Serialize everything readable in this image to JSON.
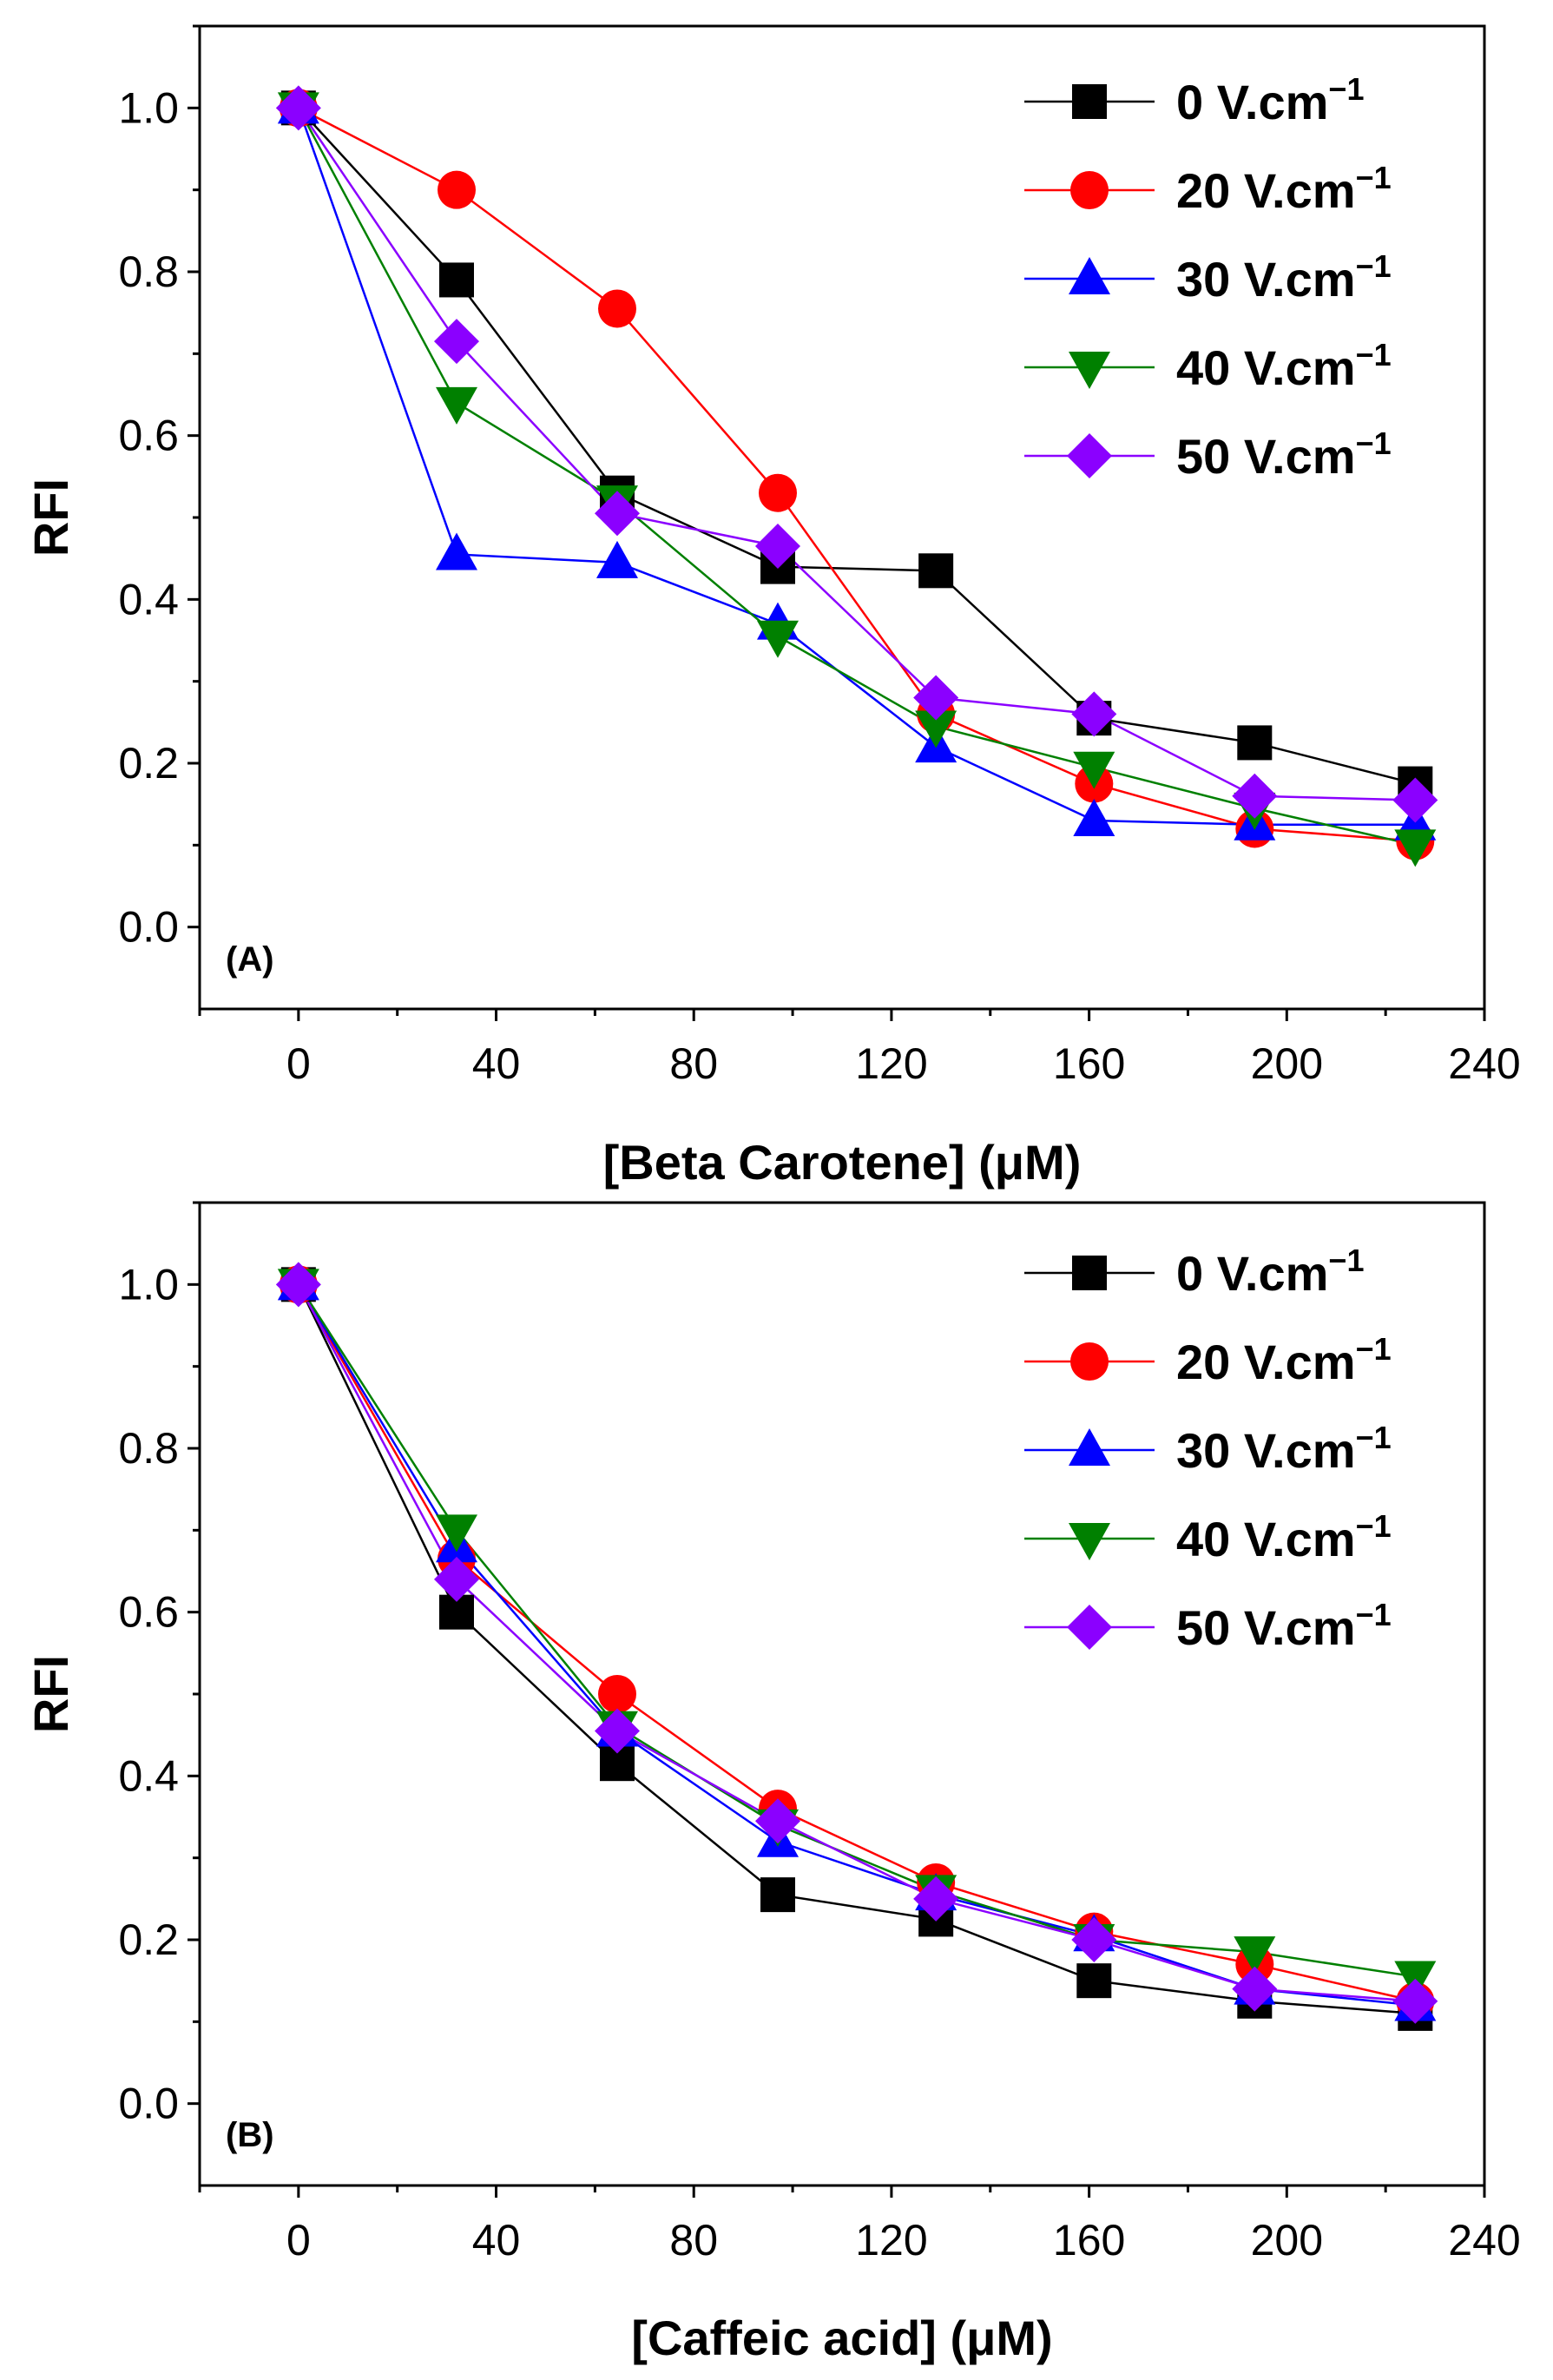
{
  "chart_data": [
    {
      "type": "line",
      "panel_label": "(A)",
      "xlabel": "[Beta Carotene] (μM)",
      "ylabel": "RFI",
      "xlim": [
        -20,
        240
      ],
      "ylim": [
        -0.1,
        1.1
      ],
      "xticks": [
        "0",
        "40",
        "80",
        "120",
        "160",
        "200",
        "240"
      ],
      "yticks": [
        "0.0",
        "0.2",
        "0.4",
        "0.6",
        "0.8",
        "1.0"
      ],
      "legend_position": "top-right",
      "x": [
        0,
        32,
        64.5,
        97,
        129,
        161,
        193.5,
        226
      ],
      "series": [
        {
          "name": "0 V.cm",
          "sup": "−1",
          "color": "#000000",
          "marker": "square",
          "values": [
            1.0,
            0.79,
            0.53,
            0.44,
            0.435,
            0.255,
            0.225,
            0.175
          ]
        },
        {
          "name": "20 V.cm",
          "sup": "−1",
          "color": "#ff0000",
          "marker": "circle",
          "values": [
            1.0,
            0.9,
            0.755,
            0.53,
            0.26,
            0.175,
            0.12,
            0.105
          ]
        },
        {
          "name": "30 V.cm",
          "sup": "−1",
          "color": "#0000ff",
          "marker": "triangle-up",
          "values": [
            1.0,
            0.455,
            0.445,
            0.37,
            0.22,
            0.13,
            0.125,
            0.125
          ]
        },
        {
          "name": "40 V.cm",
          "sup": "−1",
          "color": "#008000",
          "marker": "triangle-down",
          "values": [
            1.0,
            0.64,
            0.52,
            0.355,
            0.245,
            0.195,
            0.145,
            0.1
          ]
        },
        {
          "name": "50 V.cm",
          "sup": "−1",
          "color": "#8b00ff",
          "marker": "diamond",
          "values": [
            1.0,
            0.715,
            0.505,
            0.465,
            0.28,
            0.26,
            0.16,
            0.155
          ]
        }
      ]
    },
    {
      "type": "line",
      "panel_label": "(B)",
      "xlabel": "[Caffeic acid] (μM)",
      "ylabel": "RFI",
      "xlim": [
        -20,
        240
      ],
      "ylim": [
        -0.1,
        1.1
      ],
      "xticks": [
        "0",
        "40",
        "80",
        "120",
        "160",
        "200",
        "240"
      ],
      "yticks": [
        "0.0",
        "0.2",
        "0.4",
        "0.6",
        "0.8",
        "1.0"
      ],
      "legend_position": "top-right",
      "x": [
        0,
        32,
        64.5,
        97,
        129,
        161,
        193.5,
        226
      ],
      "series": [
        {
          "name": "0 V.cm",
          "sup": "−1",
          "color": "#000000",
          "marker": "square",
          "values": [
            1.0,
            0.6,
            0.415,
            0.255,
            0.225,
            0.15,
            0.125,
            0.11
          ]
        },
        {
          "name": "20 V.cm",
          "sup": "−1",
          "color": "#ff0000",
          "marker": "circle",
          "values": [
            1.0,
            0.665,
            0.5,
            0.36,
            0.27,
            0.21,
            0.17,
            0.125
          ]
        },
        {
          "name": "30 V.cm",
          "sup": "−1",
          "color": "#0000ff",
          "marker": "triangle-up",
          "values": [
            1.0,
            0.68,
            0.455,
            0.32,
            0.255,
            0.205,
            0.14,
            0.12
          ]
        },
        {
          "name": "40 V.cm",
          "sup": "−1",
          "color": "#008000",
          "marker": "triangle-down",
          "values": [
            1.0,
            0.7,
            0.46,
            0.34,
            0.26,
            0.2,
            0.185,
            0.155
          ]
        },
        {
          "name": "50 V.cm",
          "sup": "−1",
          "color": "#8b00ff",
          "marker": "diamond",
          "values": [
            1.0,
            0.64,
            0.455,
            0.345,
            0.25,
            0.2,
            0.14,
            0.125
          ]
        }
      ]
    }
  ]
}
